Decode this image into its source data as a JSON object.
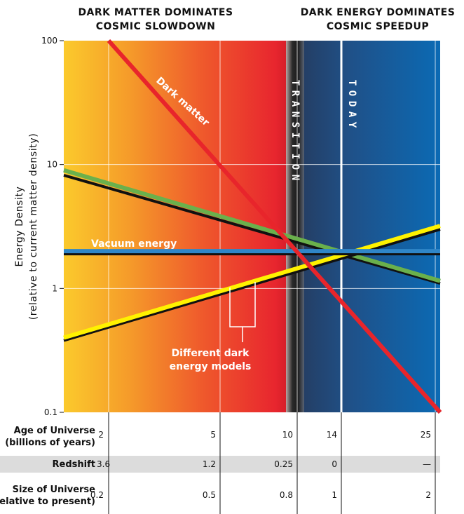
{
  "chart_data": {
    "type": "line",
    "ylabel": "Energy Density",
    "ylabel_sub": "(relative to current matter density)",
    "yscale": "log",
    "ylim": [
      0.1,
      100
    ],
    "yticks": [
      "100",
      "10",
      "1",
      "0.1"
    ],
    "grid": true,
    "headers": [
      {
        "line1": "DARK MATTER DOMINATES",
        "line2": "COSMIC SLOWDOWN"
      },
      {
        "line1": "DARK ENERGY DOMINATES",
        "line2": "COSMIC SPEEDUP"
      }
    ],
    "x_domain": "size of universe (relative to present)",
    "xlim": [
      0.16,
      2.25
    ],
    "bands": [
      {
        "label": "TRANSITION",
        "from": 0.75,
        "to": 0.85
      },
      {
        "label": "TODAY",
        "at": 1
      }
    ],
    "series": [
      {
        "name": "Dark matter",
        "color": "#e8252b",
        "x": [
          0.2,
          2.25
        ],
        "y": [
          100,
          0.1
        ]
      },
      {
        "name": "Vacuum energy",
        "color": "#2f86c8",
        "x": [
          0.16,
          2.25
        ],
        "y": [
          2,
          2
        ]
      },
      {
        "name": "",
        "color": "#6ab04c",
        "x": [
          0.16,
          2.25
        ],
        "y": [
          9,
          1.15
        ]
      },
      {
        "name": "",
        "color": "#fff200",
        "x": [
          0.16,
          2.25
        ],
        "y": [
          0.4,
          3.2
        ]
      }
    ],
    "black_lines": [
      {
        "x": [
          0.2,
          2.25
        ],
        "y": [
          100,
          0.1
        ]
      },
      {
        "x": [
          0.16,
          2.25
        ],
        "y": [
          1.9,
          1.9
        ]
      },
      {
        "x": [
          0.16,
          2.25
        ],
        "y": [
          8.2,
          1.1
        ]
      },
      {
        "x": [
          0.16,
          2.25
        ],
        "y": [
          0.38,
          3.0
        ]
      }
    ],
    "annotations": [
      {
        "text_line1": "Different dark",
        "text_line2": "energy models"
      }
    ],
    "table": {
      "rows": [
        {
          "label": "Age of Universe",
          "sublabel": "(billions of years)",
          "values": [
            "2",
            "5",
            "10",
            "14",
            "25"
          ],
          "shaded": false
        },
        {
          "label": "Redshift",
          "sublabel": "",
          "values": [
            "3.6",
            "1.2",
            "0.25",
            "0",
            "—"
          ],
          "shaded": true
        },
        {
          "label": "Size of Universe",
          "sublabel": "(relative to present)",
          "values": [
            "0.2",
            "0.5",
            "0.8",
            "1",
            "2"
          ],
          "shaded": false
        }
      ],
      "column_x_values": [
        0.2,
        0.5,
        0.8,
        1,
        2
      ]
    }
  }
}
